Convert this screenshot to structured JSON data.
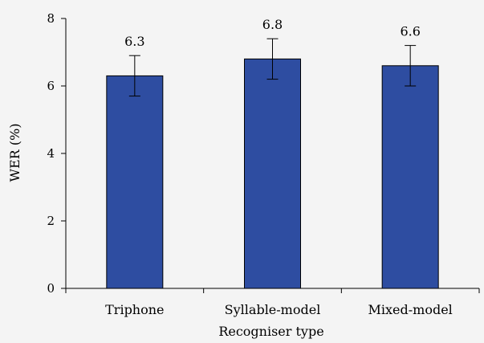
{
  "chart_data": {
    "type": "bar",
    "title": "",
    "xlabel": "Recogniser type",
    "ylabel": "WER (%)",
    "ylim": [
      0,
      8
    ],
    "yticks": [
      0,
      2,
      4,
      6,
      8
    ],
    "grid": false,
    "categories": [
      "Triphone",
      "Syllable-model",
      "Mixed-model"
    ],
    "values": [
      6.3,
      6.8,
      6.6
    ],
    "value_labels": [
      "6.3",
      "6.8",
      "6.6"
    ],
    "error_low": [
      5.7,
      6.2,
      6.0
    ],
    "error_high": [
      6.9,
      7.4,
      7.2
    ],
    "bar_color": "#2e4da1",
    "bar_stroke": "#000000"
  }
}
